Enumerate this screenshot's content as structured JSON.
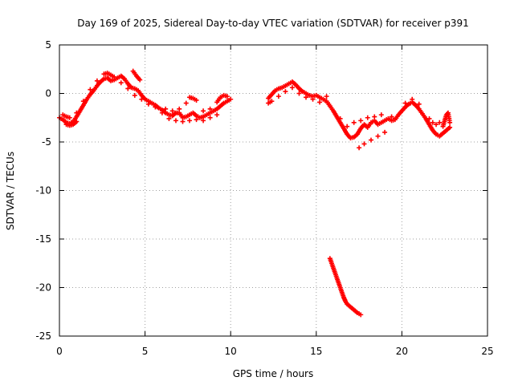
{
  "chart_data": {
    "type": "scatter",
    "title": "Day 169 of 2025, Sidereal Day-to-day VTEC variation (SDTVAR) for receiver p391",
    "xlabel": "GPS time / hours",
    "ylabel": "SDTVAR / TECUs",
    "xlim": [
      0,
      25
    ],
    "ylim": [
      -25,
      5
    ],
    "xticks": [
      0,
      5,
      10,
      15,
      20,
      25
    ],
    "xtick_labels": [
      "0",
      "5",
      "10",
      "15",
      "20",
      "25"
    ],
    "yticks": [
      5,
      0,
      -5,
      -10,
      -15,
      -20,
      -25
    ],
    "ytick_labels": [
      "5",
      "0",
      "-5",
      "-10",
      "-15",
      "-20",
      "-25"
    ],
    "grid": true,
    "marker": "+",
    "color": "#ff0000",
    "series": [
      {
        "name": "segment-1",
        "points": [
          [
            0.0,
            -2.5
          ],
          [
            0.2,
            -2.7
          ],
          [
            0.4,
            -3.0
          ],
          [
            0.6,
            -3.1
          ],
          [
            0.8,
            -2.9
          ],
          [
            1.0,
            -2.4
          ],
          [
            1.2,
            -1.8
          ],
          [
            1.4,
            -1.2
          ],
          [
            1.6,
            -0.6
          ],
          [
            1.8,
            -0.1
          ],
          [
            2.0,
            0.3
          ],
          [
            2.2,
            0.8
          ],
          [
            2.4,
            1.2
          ],
          [
            2.6,
            1.5
          ],
          [
            2.8,
            1.6
          ],
          [
            3.0,
            1.3
          ],
          [
            3.2,
            1.4
          ],
          [
            3.4,
            1.6
          ],
          [
            3.6,
            1.8
          ],
          [
            3.8,
            1.5
          ],
          [
            4.0,
            1.0
          ],
          [
            4.2,
            0.6
          ],
          [
            4.4,
            0.5
          ],
          [
            4.6,
            0.3
          ],
          [
            4.8,
            -0.2
          ],
          [
            5.0,
            -0.6
          ],
          [
            5.2,
            -0.8
          ],
          [
            5.4,
            -1.0
          ],
          [
            5.6,
            -1.2
          ],
          [
            5.8,
            -1.5
          ],
          [
            6.0,
            -1.7
          ],
          [
            6.2,
            -2.0
          ],
          [
            6.4,
            -2.2
          ],
          [
            6.6,
            -2.3
          ],
          [
            6.8,
            -2.0
          ],
          [
            7.0,
            -2.0
          ],
          [
            7.2,
            -2.5
          ],
          [
            7.4,
            -2.4
          ],
          [
            7.6,
            -2.2
          ],
          [
            7.8,
            -2.0
          ],
          [
            8.0,
            -2.3
          ],
          [
            8.2,
            -2.5
          ],
          [
            8.4,
            -2.4
          ],
          [
            8.6,
            -2.2
          ],
          [
            8.8,
            -2.0
          ],
          [
            9.0,
            -1.8
          ],
          [
            9.2,
            -1.6
          ],
          [
            9.4,
            -1.3
          ],
          [
            9.6,
            -1.0
          ],
          [
            9.8,
            -0.8
          ],
          [
            10.0,
            -0.6
          ]
        ]
      },
      {
        "name": "segment-1-upper",
        "points": [
          [
            2.6,
            2.0
          ],
          [
            2.8,
            2.1
          ],
          [
            3.0,
            1.9
          ],
          [
            3.2,
            1.7
          ],
          [
            4.3,
            2.3
          ],
          [
            4.5,
            1.8
          ],
          [
            4.7,
            1.4
          ],
          [
            0.2,
            -2.2
          ],
          [
            0.4,
            -2.4
          ],
          [
            0.6,
            -2.5
          ],
          [
            1.0,
            -2.0
          ],
          [
            1.4,
            -0.8
          ],
          [
            1.8,
            0.4
          ],
          [
            2.2,
            1.3
          ],
          [
            7.6,
            -0.4
          ],
          [
            7.8,
            -0.5
          ],
          [
            8.0,
            -0.7
          ],
          [
            9.2,
            -0.9
          ],
          [
            9.4,
            -0.4
          ],
          [
            9.6,
            -0.2
          ],
          [
            9.8,
            -0.3
          ],
          [
            6.2,
            -1.6
          ],
          [
            6.6,
            -1.8
          ],
          [
            7.0,
            -1.6
          ],
          [
            7.4,
            -1.0
          ],
          [
            8.4,
            -1.8
          ],
          [
            8.8,
            -1.6
          ]
        ]
      },
      {
        "name": "segment-1-lower",
        "points": [
          [
            0.4,
            -3.2
          ],
          [
            0.6,
            -3.3
          ],
          [
            0.8,
            -3.2
          ],
          [
            1.0,
            -2.9
          ],
          [
            3.6,
            1.1
          ],
          [
            4.0,
            0.5
          ],
          [
            4.4,
            -0.2
          ],
          [
            4.8,
            -0.6
          ],
          [
            5.2,
            -1.1
          ],
          [
            5.6,
            -1.4
          ],
          [
            6.0,
            -2.0
          ],
          [
            6.4,
            -2.6
          ],
          [
            6.8,
            -2.8
          ],
          [
            7.2,
            -2.9
          ],
          [
            7.6,
            -2.8
          ],
          [
            8.0,
            -2.7
          ],
          [
            8.4,
            -2.8
          ],
          [
            8.8,
            -2.5
          ],
          [
            9.2,
            -2.2
          ]
        ]
      },
      {
        "name": "segment-2",
        "points": [
          [
            12.2,
            -0.5
          ],
          [
            12.4,
            -0.1
          ],
          [
            12.6,
            0.3
          ],
          [
            12.8,
            0.5
          ],
          [
            13.0,
            0.6
          ],
          [
            13.2,
            0.8
          ],
          [
            13.4,
            1.0
          ],
          [
            13.6,
            1.2
          ],
          [
            13.8,
            0.9
          ],
          [
            14.0,
            0.5
          ],
          [
            14.2,
            0.2
          ],
          [
            14.4,
            0.0
          ],
          [
            14.6,
            -0.2
          ],
          [
            14.8,
            -0.3
          ],
          [
            15.0,
            -0.2
          ],
          [
            15.2,
            -0.4
          ],
          [
            15.4,
            -0.6
          ],
          [
            15.6,
            -0.8
          ],
          [
            15.8,
            -1.3
          ],
          [
            16.0,
            -1.8
          ],
          [
            16.2,
            -2.4
          ],
          [
            16.4,
            -3.0
          ],
          [
            16.6,
            -3.6
          ],
          [
            16.8,
            -4.2
          ],
          [
            17.0,
            -4.6
          ],
          [
            17.2,
            -4.5
          ],
          [
            17.4,
            -4.2
          ],
          [
            17.6,
            -3.6
          ],
          [
            17.8,
            -3.2
          ],
          [
            18.0,
            -3.5
          ],
          [
            18.2,
            -3.0
          ],
          [
            18.4,
            -2.8
          ],
          [
            18.6,
            -3.2
          ],
          [
            18.8,
            -3.0
          ],
          [
            19.0,
            -2.8
          ],
          [
            19.2,
            -2.6
          ],
          [
            19.4,
            -2.8
          ],
          [
            19.6,
            -2.7
          ],
          [
            19.8,
            -2.2
          ],
          [
            20.0,
            -1.8
          ],
          [
            20.2,
            -1.4
          ],
          [
            20.4,
            -1.1
          ],
          [
            20.6,
            -0.9
          ],
          [
            20.8,
            -1.2
          ],
          [
            21.0,
            -1.6
          ],
          [
            21.2,
            -2.1
          ],
          [
            21.4,
            -2.6
          ],
          [
            21.6,
            -3.2
          ],
          [
            21.8,
            -3.8
          ],
          [
            22.0,
            -4.2
          ],
          [
            22.2,
            -4.4
          ],
          [
            22.4,
            -4.1
          ],
          [
            22.6,
            -3.8
          ],
          [
            22.8,
            -3.5
          ]
        ]
      },
      {
        "name": "segment-2-extra",
        "points": [
          [
            12.2,
            -1.0
          ],
          [
            12.4,
            -0.8
          ],
          [
            12.8,
            -0.3
          ],
          [
            13.2,
            0.2
          ],
          [
            13.6,
            0.6
          ],
          [
            14.0,
            0.0
          ],
          [
            14.4,
            -0.4
          ],
          [
            14.8,
            -0.6
          ],
          [
            15.2,
            -0.9
          ],
          [
            15.6,
            -0.3
          ],
          [
            16.4,
            -2.6
          ],
          [
            16.8,
            -3.4
          ],
          [
            17.2,
            -3.0
          ],
          [
            17.6,
            -2.8
          ],
          [
            18.0,
            -2.5
          ],
          [
            18.4,
            -2.4
          ],
          [
            18.8,
            -2.2
          ],
          [
            19.4,
            -2.4
          ],
          [
            19.0,
            -4.0
          ],
          [
            18.6,
            -4.4
          ],
          [
            18.2,
            -4.8
          ],
          [
            17.8,
            -5.2
          ],
          [
            17.5,
            -5.6
          ],
          [
            20.2,
            -1.0
          ],
          [
            20.6,
            -0.6
          ],
          [
            21.0,
            -1.1
          ],
          [
            21.6,
            -2.6
          ],
          [
            22.0,
            -3.2
          ],
          [
            22.4,
            -3.4
          ],
          [
            22.6,
            -2.2
          ],
          [
            22.7,
            -2.0
          ],
          [
            22.8,
            -3.0
          ],
          [
            21.8,
            -3.0
          ],
          [
            22.2,
            -3.0
          ]
        ]
      },
      {
        "name": "segment-3",
        "points": [
          [
            15.8,
            -17.0
          ],
          [
            15.9,
            -17.5
          ],
          [
            16.0,
            -18.0
          ],
          [
            16.1,
            -18.5
          ],
          [
            16.2,
            -19.0
          ],
          [
            16.3,
            -19.5
          ],
          [
            16.4,
            -20.0
          ],
          [
            16.5,
            -20.5
          ],
          [
            16.6,
            -21.0
          ],
          [
            16.7,
            -21.4
          ],
          [
            16.8,
            -21.7
          ],
          [
            17.0,
            -22.0
          ],
          [
            17.2,
            -22.3
          ],
          [
            17.4,
            -22.6
          ],
          [
            17.6,
            -22.8
          ]
        ]
      }
    ]
  }
}
